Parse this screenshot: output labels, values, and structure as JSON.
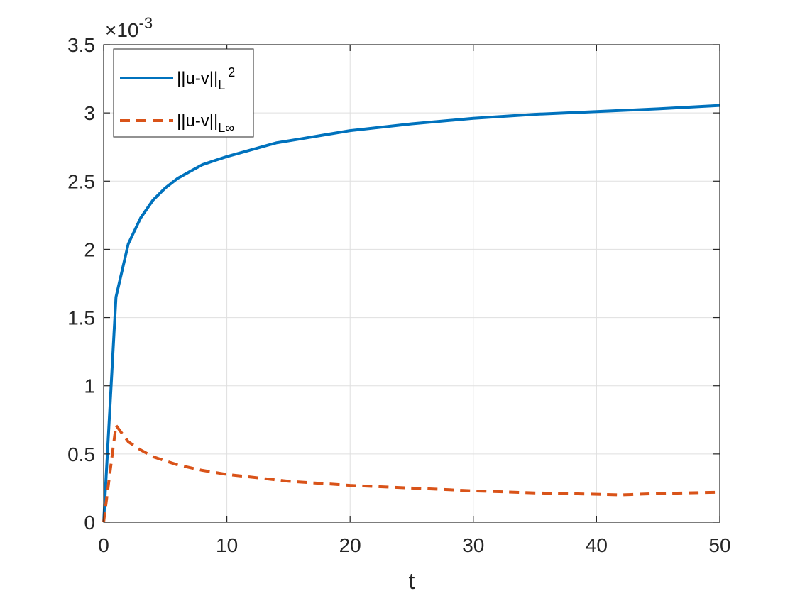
{
  "chart_data": {
    "type": "line",
    "xlabel": "t",
    "ylabel": "",
    "xlim": [
      0,
      50
    ],
    "ylim": [
      0,
      3.5
    ],
    "y_exponent_label": "×10",
    "y_exponent_power": "-3",
    "x_ticks": [
      0,
      10,
      20,
      30,
      40,
      50
    ],
    "y_ticks": [
      0,
      0.5,
      1,
      1.5,
      2,
      2.5,
      3,
      3.5
    ],
    "x_tick_labels": [
      "0",
      "10",
      "20",
      "30",
      "40",
      "50"
    ],
    "y_tick_labels": [
      "0",
      "0.5",
      "1",
      "1.5",
      "2",
      "2.5",
      "3",
      "3.5"
    ],
    "grid": true,
    "legend_position": "top-left",
    "series": [
      {
        "name": "||u-v||",
        "name_subscript": "L",
        "name_superscript": "2",
        "color": "#0072BD",
        "dash": "solid",
        "x": [
          0,
          1,
          2,
          3,
          4,
          5,
          6,
          7,
          8,
          9,
          10,
          12,
          14,
          16,
          18,
          20,
          25,
          30,
          35,
          40,
          45,
          50
        ],
        "values": [
          0,
          1.65,
          2.04,
          2.23,
          2.36,
          2.45,
          2.52,
          2.57,
          2.62,
          2.65,
          2.68,
          2.73,
          2.78,
          2.81,
          2.84,
          2.87,
          2.92,
          2.96,
          2.99,
          3.01,
          3.03,
          3.055
        ]
      },
      {
        "name": "||u-v||",
        "name_subscript": "L∞",
        "name_superscript": "",
        "color": "#D95319",
        "dash": "dashed",
        "x": [
          0,
          1,
          2,
          3,
          4,
          5,
          6,
          7,
          8,
          10,
          12,
          15,
          20,
          25,
          30,
          35,
          40,
          42,
          45,
          50
        ],
        "values": [
          0,
          0.71,
          0.59,
          0.53,
          0.48,
          0.45,
          0.42,
          0.4,
          0.38,
          0.35,
          0.33,
          0.3,
          0.27,
          0.25,
          0.23,
          0.215,
          0.205,
          0.2,
          0.21,
          0.22
        ]
      }
    ]
  }
}
